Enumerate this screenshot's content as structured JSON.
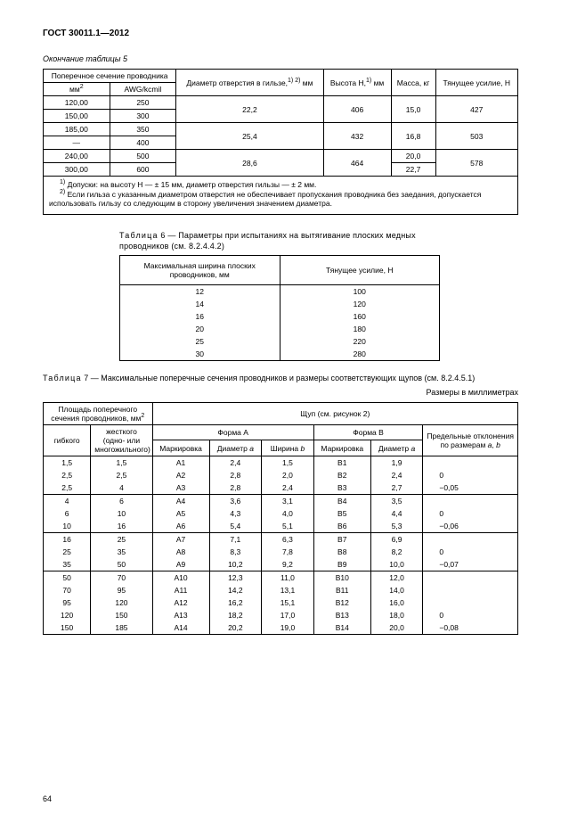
{
  "header": "ГОСТ 30011.1—2012",
  "table5": {
    "caption": "Окончание таблицы 5",
    "cols": {
      "cross_section": "Поперечное сечение проводника",
      "mm2_html": "мм<sup>2</sup>",
      "awg": "AWG/kcmil",
      "hole_html": "Диаметр отверстия в гильзе,<sup>1) 2)</sup> мм",
      "height_html": "Высота H,<sup>1)</sup> мм",
      "mass": "Масса, кг",
      "pull": "Тянущее усилие, Н"
    },
    "rows": [
      {
        "mm2": "120,00",
        "awg": "250",
        "d": "22,2",
        "h": "406",
        "m": "15,0",
        "p": "427",
        "span": 2
      },
      {
        "mm2": "150,00",
        "awg": "300"
      },
      {
        "mm2": "185,00",
        "awg": "350",
        "d": "25,4",
        "h": "432",
        "m": "16,8",
        "p": "503",
        "span": 2
      },
      {
        "mm2": "—",
        "awg": "400"
      },
      {
        "mm2": "240,00",
        "awg": "500",
        "d": "28,6",
        "h": "464",
        "m": "20,0",
        "p": "578",
        "span": 2,
        "mspan": 1
      },
      {
        "mm2": "300,00",
        "awg": "600",
        "m": "22,7"
      }
    ],
    "footnote1_html": "<sup>1)</sup> Допуски: на высоту H — ± 15 мм, диаметр отверстия гильзы — ± 2 мм.",
    "footnote2_html": "<sup>2)</sup> Если гильза с указанным диаметром отверстия не обеспечивает пропускания проводника без заедания, допускается использовать гильзу со следующим в сторону увеличения значением диаметра."
  },
  "table6": {
    "caption_prefix": "Таблица",
    "caption_num": "6",
    "caption_rest": "— Параметры при испытаниях на вытягивание плоских медных проводников (см. 8.2.4.4.2)",
    "col1": "Максимальная ширина плоских проводников, мм",
    "col2": "Тянущее усилие, Н",
    "widths": [
      "12",
      "14",
      "16",
      "20",
      "25",
      "30"
    ],
    "forces": [
      "100",
      "120",
      "160",
      "180",
      "220",
      "280"
    ]
  },
  "table7": {
    "caption_prefix": "Таблица",
    "caption_num": "7",
    "caption_rest": "— Максимальные поперечные сечения проводников и размеры соответствующих щупов (см. 8.2.4.5.1)",
    "units": "Размеры в миллиметрах",
    "cols": {
      "area_html": "Площадь поперечного сечения проводников, мм<sup>2</sup>",
      "flexible": "гибкого",
      "rigid": "жесткого (одно- или многожильного)",
      "probe": "Щуп (см. рисунок 2)",
      "formA": "Форма A",
      "formB": "Форма B",
      "mark": "Маркировка",
      "dia_html": "Диаметр <i>a</i>",
      "width_html": "Ширина <i>b</i>",
      "tol_html": "Предельные отклонения по размерам <i>a</i>, <i>b</i>"
    },
    "groups": [
      {
        "tol": [
          "0",
          "−0,05"
        ],
        "rows": [
          {
            "f": "1,5",
            "r": "1,5",
            "mA": "A1",
            "dA": "2,4",
            "wA": "1,5",
            "mB": "B1",
            "dB": "1,9"
          },
          {
            "f": "2,5",
            "r": "2,5",
            "mA": "A2",
            "dA": "2,8",
            "wA": "2,0",
            "mB": "B2",
            "dB": "2,4"
          },
          {
            "f": "2,5",
            "r": "4",
            "mA": "A3",
            "dA": "2,8",
            "wA": "2,4",
            "mB": "B3",
            "dB": "2,7"
          }
        ]
      },
      {
        "tol": [
          "0",
          "−0,06"
        ],
        "rows": [
          {
            "f": "4",
            "r": "6",
            "mA": "A4",
            "dA": "3,6",
            "wA": "3,1",
            "mB": "B4",
            "dB": "3,5"
          },
          {
            "f": "6",
            "r": "10",
            "mA": "A5",
            "dA": "4,3",
            "wA": "4,0",
            "mB": "B5",
            "dB": "4,4"
          },
          {
            "f": "10",
            "r": "16",
            "mA": "A6",
            "dA": "5,4",
            "wA": "5,1",
            "mB": "B6",
            "dB": "5,3"
          }
        ]
      },
      {
        "tol": [
          "0",
          "−0,07"
        ],
        "rows": [
          {
            "f": "16",
            "r": "25",
            "mA": "A7",
            "dA": "7,1",
            "wA": "6,3",
            "mB": "B7",
            "dB": "6,9"
          },
          {
            "f": "25",
            "r": "35",
            "mA": "A8",
            "dA": "8,3",
            "wA": "7,8",
            "mB": "B8",
            "dB": "8,2"
          },
          {
            "f": "35",
            "r": "50",
            "mA": "A9",
            "dA": "10,2",
            "wA": "9,2",
            "mB": "B9",
            "dB": "10,0"
          }
        ]
      },
      {
        "tol": [
          "0",
          "−0,08"
        ],
        "rows": [
          {
            "f": "50",
            "r": "70",
            "mA": "A10",
            "dA": "12,3",
            "wA": "11,0",
            "mB": "B10",
            "dB": "12,0"
          },
          {
            "f": "70",
            "r": "95",
            "mA": "A11",
            "dA": "14,2",
            "wA": "13,1",
            "mB": "B11",
            "dB": "14,0"
          },
          {
            "f": "95",
            "r": "120",
            "mA": "A12",
            "dA": "16,2",
            "wA": "15,1",
            "mB": "B12",
            "dB": "16,0"
          },
          {
            "f": "120",
            "r": "150",
            "mA": "A13",
            "dA": "18,2",
            "wA": "17,0",
            "mB": "B13",
            "dB": "18,0"
          },
          {
            "f": "150",
            "r": "185",
            "mA": "A14",
            "dA": "20,2",
            "wA": "19,0",
            "mB": "B14",
            "dB": "20,0"
          }
        ]
      }
    ]
  },
  "pageNumber": "64"
}
